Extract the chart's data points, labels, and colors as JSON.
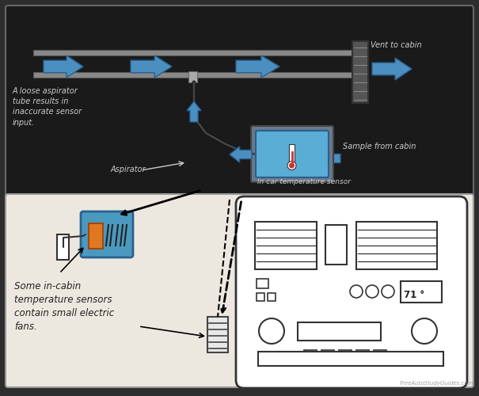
{
  "bg_outer": "#2d2d2d",
  "bg_upper": "#1a1a1a",
  "bg_lower": "#ede8df",
  "arrow_color": "#4a8fc0",
  "arrow_edge": "#2a6090",
  "duct_color": "#888888",
  "text_light": "#cccccc",
  "text_dark": "#222222",
  "sensor_blue": "#5aadd4",
  "sensor_edge": "#2a6090",
  "label_vent": "Vent to cabin",
  "label_sample": "Sample from cabin",
  "label_sensor": "In car temperature sensor",
  "label_loose": "A loose aspirator\ntube results in\ninaccurate sensor\ninput.",
  "label_aspirator": "Aspirator",
  "label_cabin": "Some in-cabin\ntemperature sensors\ncontain small electric\nfans.",
  "watermark": "FreeAutoStudyGuides.com"
}
